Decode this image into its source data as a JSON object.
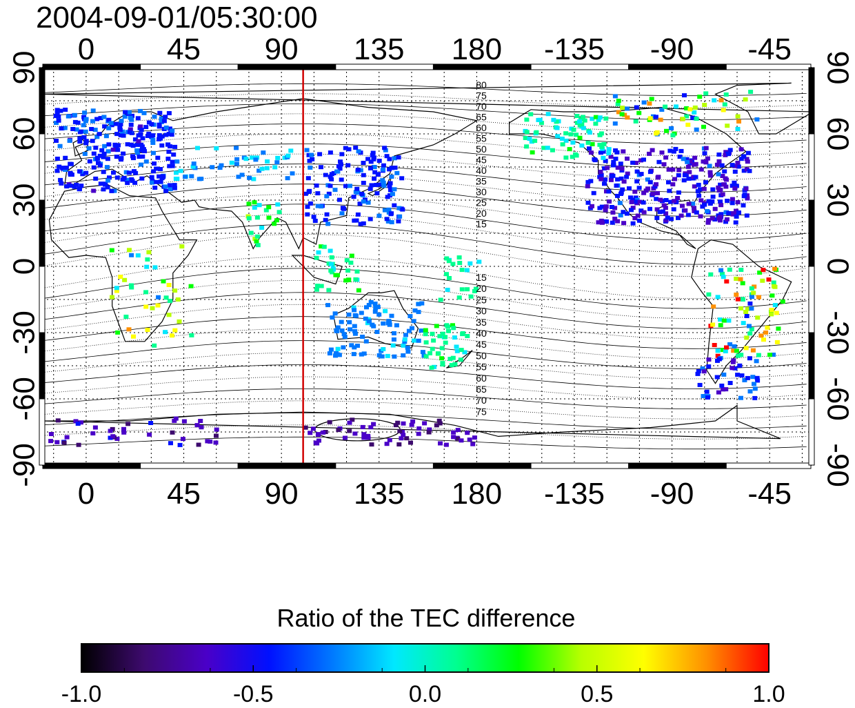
{
  "map": {
    "timestamp": "2004-09-01/05:30:00",
    "lon_labels_top": [
      "0",
      "45",
      "90",
      "135",
      "180",
      "-135",
      "-90",
      "-45"
    ],
    "lon_labels_bottom": [
      "0",
      "45",
      "90",
      "135",
      "180",
      "-135",
      "-90",
      "-45"
    ],
    "lat_labels_left": [
      "90",
      "60",
      "30",
      "0",
      "-30",
      "-60",
      "-90"
    ],
    "lat_labels_right": [
      "90",
      "60",
      "30",
      "0",
      "-30",
      "-60",
      "-90"
    ],
    "lon_range": [
      -20,
      334
    ],
    "lat_range": [
      -90,
      90
    ],
    "marker_line": {
      "longitude": 100,
      "color": "#d00000"
    },
    "contour_labels_north": [
      "80",
      "75",
      "70",
      "65",
      "60",
      "55",
      "50",
      "45",
      "40",
      "35",
      "30",
      "25",
      "20",
      "15"
    ],
    "contour_labels_south": [
      "15",
      "20",
      "25",
      "30",
      "35",
      "40",
      "45",
      "50",
      "55",
      "60",
      "65",
      "70",
      "75"
    ]
  },
  "colorbar": {
    "title": "Ratio of the TEC difference",
    "ticks": [
      "-1.0",
      "-0.5",
      "0.0",
      "0.5",
      "1.0"
    ],
    "range": [
      -1.0,
      1.0
    ],
    "colors": [
      "#000000",
      "#3d0a6e",
      "#4a00c8",
      "#0010ff",
      "#0078ff",
      "#00e8ff",
      "#00ff90",
      "#00ff00",
      "#b8ff00",
      "#ffff00",
      "#ff9000",
      "#ff0000"
    ]
  }
}
